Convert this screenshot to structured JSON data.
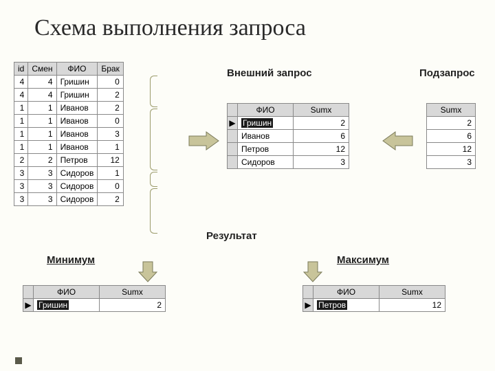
{
  "title": "Схема выполнения запроса",
  "labels": {
    "outer": "Внешний запрос",
    "sub": "Подзапрос",
    "result": "Результат",
    "min": "Минимум",
    "max": "Максимум"
  },
  "source": {
    "headers": [
      "id",
      "Смен",
      "ФИО",
      "Брак"
    ],
    "rows": [
      [
        "4",
        "4",
        "Гришин",
        "0"
      ],
      [
        "4",
        "4",
        "Гришин",
        "2"
      ],
      [
        "1",
        "1",
        "Иванов",
        "2"
      ],
      [
        "1",
        "1",
        "Иванов",
        "0"
      ],
      [
        "1",
        "1",
        "Иванов",
        "3"
      ],
      [
        "1",
        "1",
        "Иванов",
        "1"
      ],
      [
        "2",
        "2",
        "Петров",
        "12"
      ],
      [
        "3",
        "3",
        "Сидоров",
        "1"
      ],
      [
        "3",
        "3",
        "Сидоров",
        "0"
      ],
      [
        "3",
        "3",
        "Сидоров",
        "2"
      ]
    ]
  },
  "outer": {
    "headers": [
      "ФИО",
      "Sumx"
    ],
    "rows": [
      {
        "sel": true,
        "fio": "Гришин",
        "sum": "2"
      },
      {
        "sel": false,
        "fio": "Иванов",
        "sum": "6"
      },
      {
        "sel": false,
        "fio": "Петров",
        "sum": "12"
      },
      {
        "sel": false,
        "fio": "Сидоров",
        "sum": "3"
      }
    ]
  },
  "sub": {
    "headers": [
      "Sumx"
    ],
    "rows": [
      "2",
      "6",
      "12",
      "3"
    ]
  },
  "min": {
    "headers": [
      "ФИО",
      "Sumx"
    ],
    "row": {
      "fio": "Гришин",
      "sum": "2"
    }
  },
  "max": {
    "headers": [
      "ФИО",
      "Sumx"
    ],
    "row": {
      "fio": "Петров",
      "sum": "12"
    }
  },
  "colors": {
    "arrow_fill": "#c8c49a",
    "arrow_stroke": "#7a7a5a"
  }
}
